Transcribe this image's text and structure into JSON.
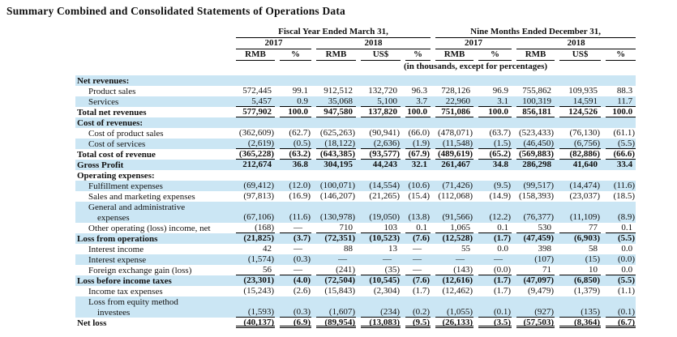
{
  "title": "Summary Combined and Consolidated Statements of Operations Data",
  "colors": {
    "stripe": "#cbe6f4",
    "text": "#111111",
    "rule": "#000000"
  },
  "table": {
    "header": {
      "groups": [
        {
          "label": "Fiscal Year Ended March 31,",
          "span": 5
        },
        {
          "label": "Nine Months Ended December 31,",
          "span": 5
        }
      ],
      "years": [
        {
          "label": "2017",
          "span": 2
        },
        {
          "label": "2018",
          "span": 3
        },
        {
          "label": "2017",
          "span": 2
        },
        {
          "label": "2018",
          "span": 3
        }
      ],
      "columns": [
        "RMB",
        "%",
        "RMB",
        "US$",
        "%",
        "RMB",
        "%",
        "RMB",
        "US$",
        "%"
      ],
      "units_note": "(in thousands, except for percentages)"
    },
    "rows": [
      {
        "label": "Net revenues:",
        "indent": 0,
        "bold": true,
        "shaded": true,
        "underline": "none",
        "values": [
          "",
          "",
          "",
          "",
          "",
          "",
          "",
          "",
          "",
          ""
        ]
      },
      {
        "label": "Product sales",
        "indent": 1,
        "bold": false,
        "shaded": false,
        "underline": "none",
        "values": [
          "572,445",
          "99.1",
          "912,512",
          "132,720",
          "96.3",
          "728,126",
          "96.9",
          "755,862",
          "109,935",
          "88.3"
        ]
      },
      {
        "label": "Services",
        "indent": 1,
        "bold": false,
        "shaded": true,
        "underline": "single",
        "values": [
          "5,457",
          "0.9",
          "35,068",
          "5,100",
          "3.7",
          "22,960",
          "3.1",
          "100,319",
          "14,591",
          "11.7"
        ]
      },
      {
        "label": "Total net revenues",
        "indent": 0,
        "bold": true,
        "shaded": false,
        "underline": "single",
        "values": [
          "577,902",
          "100.0",
          "947,580",
          "137,820",
          "100.0",
          "751,086",
          "100.0",
          "856,181",
          "124,526",
          "100.0"
        ]
      },
      {
        "label": "Cost of revenues:",
        "indent": 0,
        "bold": true,
        "shaded": true,
        "underline": "none",
        "values": [
          "",
          "",
          "",
          "",
          "",
          "",
          "",
          "",
          "",
          ""
        ]
      },
      {
        "label": "Cost of product sales",
        "indent": 1,
        "bold": false,
        "shaded": false,
        "underline": "none",
        "values": [
          "(362,609)",
          "(62.7)",
          "(625,263)",
          "(90,941)",
          "(66.0)",
          "(478,071)",
          "(63.7)",
          "(523,433)",
          "(76,130)",
          "(61.1)"
        ]
      },
      {
        "label": "Cost of services",
        "indent": 1,
        "bold": false,
        "shaded": true,
        "underline": "single",
        "values": [
          "(2,619)",
          "(0.5)",
          "(18,122)",
          "(2,636)",
          "(1.9)",
          "(11,548)",
          "(1.5)",
          "(46,450)",
          "(6,756)",
          "(5.5)"
        ]
      },
      {
        "label": "Total cost of revenue",
        "indent": 0,
        "bold": true,
        "shaded": false,
        "underline": "single",
        "values": [
          "(365,228)",
          "(63.2)",
          "(643,385)",
          "(93,577)",
          "(67.9)",
          "(489,619)",
          "(65.2)",
          "(569,883)",
          "(82,886)",
          "(66.6)"
        ]
      },
      {
        "label": "Gross Profit",
        "indent": 0,
        "bold": true,
        "shaded": true,
        "underline": "none",
        "values": [
          "212,674",
          "36.8",
          "304,195",
          "44,243",
          "32.1",
          "261,467",
          "34.8",
          "286,298",
          "41,640",
          "33.4"
        ]
      },
      {
        "label": "Operating expenses:",
        "indent": 0,
        "bold": true,
        "shaded": false,
        "underline": "none",
        "values": [
          "",
          "",
          "",
          "",
          "",
          "",
          "",
          "",
          "",
          ""
        ]
      },
      {
        "label": "Fulfillment expenses",
        "indent": 1,
        "bold": false,
        "shaded": true,
        "underline": "none",
        "values": [
          "(69,412)",
          "(12.0)",
          "(100,071)",
          "(14,554)",
          "(10.6)",
          "(71,426)",
          "(9.5)",
          "(99,517)",
          "(14,474)",
          "(11.6)"
        ]
      },
      {
        "label": "Sales and marketing expenses",
        "indent": 1,
        "bold": false,
        "shaded": false,
        "underline": "none",
        "values": [
          "(97,813)",
          "(16.9)",
          "(146,207)",
          "(21,265)",
          "(15.4)",
          "(112,068)",
          "(14.9)",
          "(158,393)",
          "(23,037)",
          "(18.5)"
        ]
      },
      {
        "label": "General and administrative",
        "indent": 1,
        "bold": false,
        "shaded": true,
        "underline": "none",
        "values": [
          "",
          "",
          "",
          "",
          "",
          "",
          "",
          "",
          "",
          ""
        ]
      },
      {
        "label": "expenses",
        "indent": 2,
        "bold": false,
        "shaded": true,
        "underline": "none",
        "values": [
          "(67,106)",
          "(11.6)",
          "(130,978)",
          "(19,050)",
          "(13.8)",
          "(91,566)",
          "(12.2)",
          "(76,377)",
          "(11,109)",
          "(8.9)"
        ]
      },
      {
        "label": "Other operating (loss) income, net",
        "indent": 1,
        "bold": false,
        "shaded": false,
        "underline": "single",
        "values": [
          "(168)",
          "—",
          "710",
          "103",
          "0.1",
          "1,065",
          "0.1",
          "530",
          "77",
          "0.1"
        ]
      },
      {
        "label": "Loss from operations",
        "indent": 0,
        "bold": true,
        "shaded": true,
        "underline": "none",
        "values": [
          "(21,825)",
          "(3.7)",
          "(72,351)",
          "(10,523)",
          "(7.6)",
          "(12,528)",
          "(1.7)",
          "(47,459)",
          "(6,903)",
          "(5.5)"
        ]
      },
      {
        "label": "Interest income",
        "indent": 1,
        "bold": false,
        "shaded": false,
        "underline": "none",
        "values": [
          "42",
          "—",
          "88",
          "13",
          "—",
          "55",
          "0.0",
          "398",
          "58",
          "0.0"
        ]
      },
      {
        "label": "Interest expense",
        "indent": 1,
        "bold": false,
        "shaded": true,
        "underline": "none",
        "values": [
          "(1,574)",
          "(0.3)",
          "—",
          "—",
          "—",
          "—",
          "—",
          "(107)",
          "(15)",
          "(0.0)"
        ]
      },
      {
        "label": "Foreign exchange gain (loss)",
        "indent": 1,
        "bold": false,
        "shaded": false,
        "underline": "single",
        "values": [
          "56",
          "—",
          "(241)",
          "(35)",
          "—",
          "(143)",
          "(0.0)",
          "71",
          "10",
          "0.0"
        ]
      },
      {
        "label": "Loss before income taxes",
        "indent": 0,
        "bold": true,
        "shaded": true,
        "underline": "none",
        "values": [
          "(23,301)",
          "(4.0)",
          "(72,504)",
          "(10,545)",
          "(7.6)",
          "(12,616)",
          "(1.7)",
          "(47,097)",
          "(6,850)",
          "(5.5)"
        ]
      },
      {
        "label": "Income tax expenses",
        "indent": 1,
        "bold": false,
        "shaded": false,
        "underline": "none",
        "values": [
          "(15,243)",
          "(2.6)",
          "(15,843)",
          "(2,304)",
          "(1.7)",
          "(12,462)",
          "(1.7)",
          "(9,479)",
          "(1,379)",
          "(1.1)"
        ]
      },
      {
        "label": "Loss from equity method",
        "indent": 1,
        "bold": false,
        "shaded": true,
        "underline": "none",
        "values": [
          "",
          "",
          "",
          "",
          "",
          "",
          "",
          "",
          "",
          ""
        ]
      },
      {
        "label": "investees",
        "indent": 2,
        "bold": false,
        "shaded": true,
        "underline": "single",
        "values": [
          "(1,593)",
          "(0.3)",
          "(1,607)",
          "(234)",
          "(0.2)",
          "(1,055)",
          "(0.1)",
          "(927)",
          "(135)",
          "(0.1)"
        ]
      },
      {
        "label": "Net loss",
        "indent": 0,
        "bold": true,
        "shaded": false,
        "underline": "double",
        "values": [
          "(40,137)",
          "(6.9)",
          "(89,954)",
          "(13,083)",
          "(9.5)",
          "(26,133)",
          "(3.5)",
          "(57,503)",
          "(8,364)",
          "(6.7)"
        ]
      }
    ]
  }
}
